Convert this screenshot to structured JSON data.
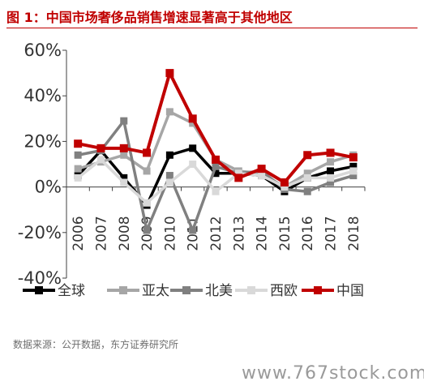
{
  "header": {
    "title": "图 1：中国市场奢侈品销售增速显著高于其他地区"
  },
  "footer": {
    "source": "数据来源：公开数据，东方证券研究所",
    "watermark": "www.767stock.com"
  },
  "chart_data": {
    "type": "line",
    "categories": [
      "2006",
      "2007",
      "2008",
      "2009",
      "2010",
      "2011",
      "2012",
      "2013",
      "2014",
      "2015",
      "2016",
      "2017",
      "2018"
    ],
    "y_ticks": [
      "60%",
      "40%",
      "20%",
      "0%",
      "-20%",
      "-40%"
    ],
    "ylim": [
      -40,
      60
    ],
    "grid": false,
    "legend_position": "bottom",
    "series": [
      {
        "name": "全球",
        "color": "#000000",
        "values": [
          5,
          16,
          4,
          -8,
          14,
          17,
          6,
          6,
          5,
          -2,
          4,
          7,
          9
        ]
      },
      {
        "name": "亚太",
        "color": "#a6a6a6",
        "values": [
          8,
          11,
          14,
          7,
          33,
          28,
          12,
          7,
          6,
          0,
          6,
          11,
          14
        ]
      },
      {
        "name": "北美",
        "color": "#808080",
        "values": [
          14,
          16,
          29,
          -19,
          5,
          -19,
          9,
          6,
          7,
          -1,
          -2,
          2,
          5
        ]
      },
      {
        "name": "西欧",
        "color": "#d9d9d9",
        "values": [
          4,
          12,
          2,
          -7,
          2,
          10,
          -2,
          6,
          5,
          0,
          4,
          4,
          7
        ]
      },
      {
        "name": "中国",
        "color": "#c00000",
        "values": [
          19,
          17,
          17,
          15,
          50,
          30,
          12,
          4,
          8,
          2,
          14,
          15,
          13
        ]
      }
    ]
  }
}
